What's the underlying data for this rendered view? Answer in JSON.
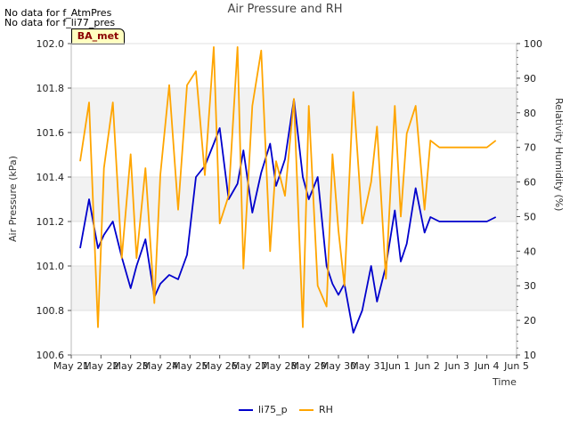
{
  "notes": [
    "No data for f_AtmPres",
    "No data for f_li77_pres"
  ],
  "badge": "BA_met",
  "chart_data": {
    "type": "line",
    "title": "Air Pressure and RH",
    "xlabel": "Time",
    "ylabel": "Air Pressure (kPa)",
    "y2label": "Relativity Humidity (%)",
    "xticks": [
      "May 21",
      "May 22",
      "May 23",
      "May 24",
      "May 25",
      "May 26",
      "May 27",
      "May 28",
      "May 29",
      "May 30",
      "May 31",
      "Jun 1",
      "Jun 2",
      "Jun 3",
      "Jun 4",
      "Jun 5"
    ],
    "ylim": [
      100.6,
      102.0
    ],
    "yticks": [
      "100.6",
      "100.8",
      "101.0",
      "101.2",
      "101.4",
      "101.6",
      "101.8",
      "102.0"
    ],
    "y2lim": [
      10,
      100
    ],
    "y2ticks": [
      "10",
      "20",
      "30",
      "40",
      "50",
      "60",
      "70",
      "80",
      "90",
      "100"
    ],
    "grid": "horizontal bands",
    "legend_position": "bottom-center",
    "colors": {
      "li75_p": "#0000cc",
      "RH": "#ffa500"
    },
    "x_days_since_may21": [
      0.3,
      0.6,
      0.9,
      1.1,
      1.4,
      1.7,
      2.0,
      2.2,
      2.5,
      2.8,
      3.0,
      3.3,
      3.6,
      3.9,
      4.2,
      4.5,
      4.8,
      5.0,
      5.3,
      5.6,
      5.8,
      6.1,
      6.4,
      6.7,
      6.9,
      7.2,
      7.5,
      7.8,
      8.0,
      8.3,
      8.6,
      8.8,
      9.0,
      9.2,
      9.5,
      9.8,
      10.1,
      10.3,
      10.6,
      10.9,
      11.1,
      11.3,
      11.6,
      11.9,
      12.1,
      12.4,
      12.7,
      13.0,
      13.2,
      13.5,
      13.8,
      14.0,
      14.3
    ],
    "series": [
      {
        "name": "li75_p",
        "axis": "left",
        "values": [
          101.08,
          101.3,
          101.08,
          101.14,
          101.2,
          101.04,
          100.9,
          101.0,
          101.12,
          100.86,
          100.92,
          100.96,
          100.94,
          101.05,
          101.4,
          101.45,
          101.55,
          101.62,
          101.3,
          101.37,
          101.52,
          101.24,
          101.42,
          101.55,
          101.36,
          101.48,
          101.75,
          101.4,
          101.3,
          101.4,
          101.0,
          100.92,
          100.87,
          100.92,
          100.7,
          100.8,
          101.0,
          100.84,
          101.0,
          101.25,
          101.02,
          101.1,
          101.35,
          101.15,
          101.22,
          101.2,
          101.2,
          101.2,
          101.2,
          101.2,
          101.2,
          101.2,
          101.22
        ]
      },
      {
        "name": "RH",
        "axis": "right",
        "values": [
          66,
          83,
          18,
          64,
          83,
          38,
          68,
          38,
          64,
          25,
          62,
          88,
          52,
          88,
          92,
          62,
          99,
          48,
          56,
          99,
          35,
          82,
          98,
          40,
          66,
          56,
          84,
          18,
          82,
          30,
          24,
          68,
          46,
          30,
          86,
          48,
          60,
          76,
          32,
          82,
          50,
          74,
          82,
          52,
          72,
          70,
          70,
          70,
          70,
          70,
          70,
          70,
          72
        ]
      }
    ]
  }
}
